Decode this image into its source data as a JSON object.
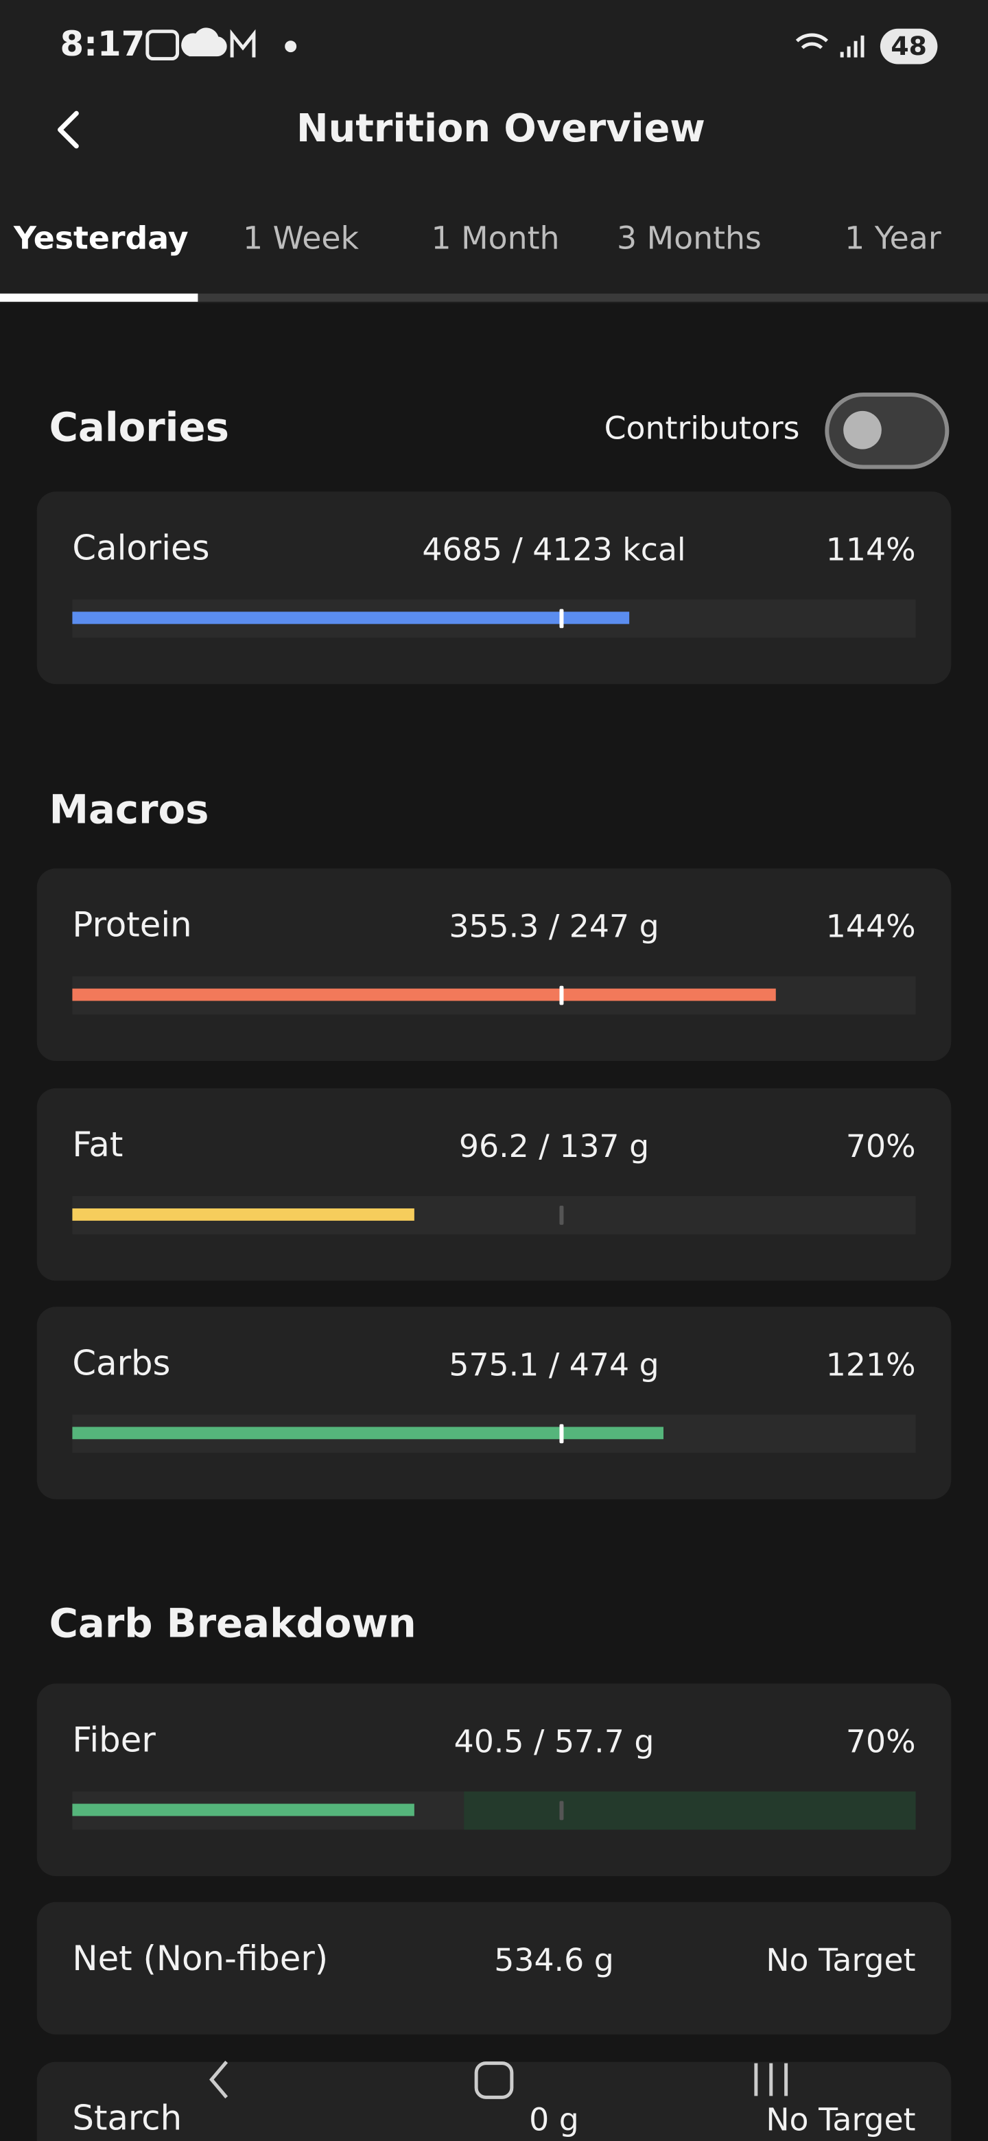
{
  "status_bar": {
    "time": "8:17",
    "battery": "48"
  },
  "header": {
    "title": "Nutrition Overview"
  },
  "tabs": [
    "Yesterday",
    "1 Week",
    "1 Month",
    "3 Months",
    "1 Year"
  ],
  "active_tab": 0,
  "bar_colors": {
    "Calories": "#5b8def",
    "Protein": "#f2795a",
    "Fat": "#f6cd5c",
    "Carbs": "#55b57b",
    "Fiber": "#55b57b"
  },
  "sections": [
    {
      "heading": "Calories",
      "contributors": "Contributors",
      "rows": [
        {
          "name": "Calories",
          "amount": "4685 / 4123 kcal",
          "percent": 114,
          "percent_label": "114%"
        }
      ]
    },
    {
      "heading": "Macros",
      "rows": [
        {
          "name": "Protein",
          "amount": "355.3 / 247 g",
          "percent": 144,
          "percent_label": "144%"
        },
        {
          "name": "Fat",
          "amount": "96.2 / 137 g",
          "percent": 70,
          "percent_label": "70%"
        },
        {
          "name": "Carbs",
          "amount": "575.1 / 474 g",
          "percent": 121,
          "percent_label": "121%"
        }
      ]
    },
    {
      "heading": "Carb Breakdown",
      "rows": [
        {
          "name": "Fiber",
          "amount": "40.5 / 57.7 g",
          "percent": 70,
          "percent_label": "70%"
        },
        {
          "name": "Net (Non-fiber)",
          "amount": "534.6 g",
          "target": "No Target"
        },
        {
          "name": "Starch",
          "amount": "0 g",
          "target": "No Target"
        }
      ]
    }
  ]
}
